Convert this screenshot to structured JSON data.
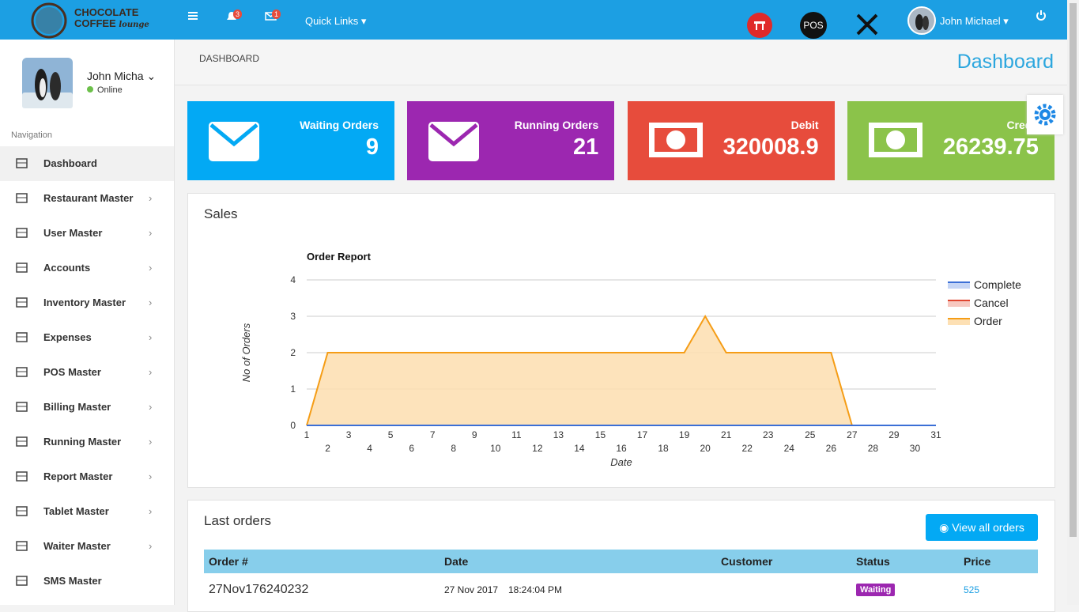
{
  "header": {
    "logo_line1": "CHOCOLATE",
    "logo_line2": "COFFEE",
    "logo_script": "lounge",
    "notifications": "3",
    "messages": "1",
    "quick_links": "Quick Links",
    "pos": "POS",
    "user": "John Michael"
  },
  "sidebar": {
    "user": "John Micha",
    "status": "Online",
    "section": "Navigation",
    "menu": [
      "Dashboard",
      "Restaurant Master",
      "User Master",
      "Accounts",
      "Inventory Master",
      "Expenses",
      "POS Master",
      "Billing Master",
      "Running Master",
      "Report Master",
      "Tablet Master",
      "Waiter Master",
      "SMS Master"
    ]
  },
  "breadcrumb": "DASHBOARD",
  "page_title": "Dashboard",
  "cards": [
    {
      "label": "Waiting Orders",
      "value": 9,
      "color": "#03a9f4"
    },
    {
      "label": "Running Orders",
      "value": 21,
      "color": "#9c27b0"
    },
    {
      "label": "Debit",
      "value": 320008.9,
      "color": "#e74c3c"
    },
    {
      "label": "Credit",
      "value": 26239.75,
      "color": "#8bc34a"
    }
  ],
  "sales_title": "Sales",
  "chart_data": {
    "type": "area",
    "title": "Order Report",
    "y_label": "No of Orders",
    "x_label": "Date",
    "x": [
      1,
      2,
      3,
      4,
      5,
      6,
      7,
      8,
      9,
      10,
      11,
      12,
      13,
      14,
      15,
      16,
      17,
      18,
      19,
      20,
      21,
      22,
      23,
      24,
      25,
      26,
      27,
      28,
      29,
      30,
      31
    ],
    "xlim": [
      1,
      31
    ],
    "xticks": [
      1,
      2,
      3,
      4,
      5,
      6,
      7,
      8,
      9,
      10,
      11,
      12,
      13,
      14,
      15,
      16,
      17,
      18,
      19,
      20,
      21,
      22,
      23,
      24,
      25,
      26,
      27,
      28,
      29,
      30,
      31
    ],
    "ylim": [
      0,
      4
    ],
    "yticks": [
      0,
      1,
      2,
      3,
      4
    ],
    "grid": true,
    "legend": "right",
    "series": [
      {
        "name": "Complete",
        "color": "#3b6fd6",
        "fill": "#c5d5f5",
        "values": [
          0,
          0,
          0,
          0,
          0,
          0,
          0,
          0,
          0,
          0,
          0,
          0,
          0,
          0,
          0,
          0,
          0,
          0,
          0,
          0,
          0,
          0,
          0,
          0,
          0,
          0,
          0,
          0,
          0,
          0,
          0
        ]
      },
      {
        "name": "Cancel",
        "color": "#e0452f",
        "fill": "#f7c8c0",
        "values": [
          0,
          0,
          0,
          0,
          0,
          0,
          0,
          0,
          0,
          0,
          0,
          0,
          0,
          0,
          0,
          0,
          0,
          0,
          0,
          0,
          0,
          0,
          0,
          0,
          0,
          0,
          0,
          0,
          0,
          0,
          0
        ]
      },
      {
        "name": "Order",
        "color": "#f59d16",
        "fill": "#fde0b4",
        "values": [
          0,
          2,
          2,
          2,
          2,
          2,
          2,
          2,
          2,
          2,
          2,
          2,
          2,
          2,
          2,
          2,
          2,
          2,
          2,
          3,
          2,
          2,
          2,
          2,
          2,
          2,
          0,
          0,
          0,
          0,
          0
        ]
      }
    ]
  },
  "orders": {
    "title": "Last orders",
    "button": "View all orders",
    "columns": [
      "Order #",
      "Date",
      "Customer",
      "Status",
      "Price"
    ],
    "rows": [
      {
        "order": "27Nov176240232",
        "date": "27 Nov 2017",
        "time": "18:24:04 PM",
        "status": "Waiting",
        "price": 525
      }
    ]
  }
}
